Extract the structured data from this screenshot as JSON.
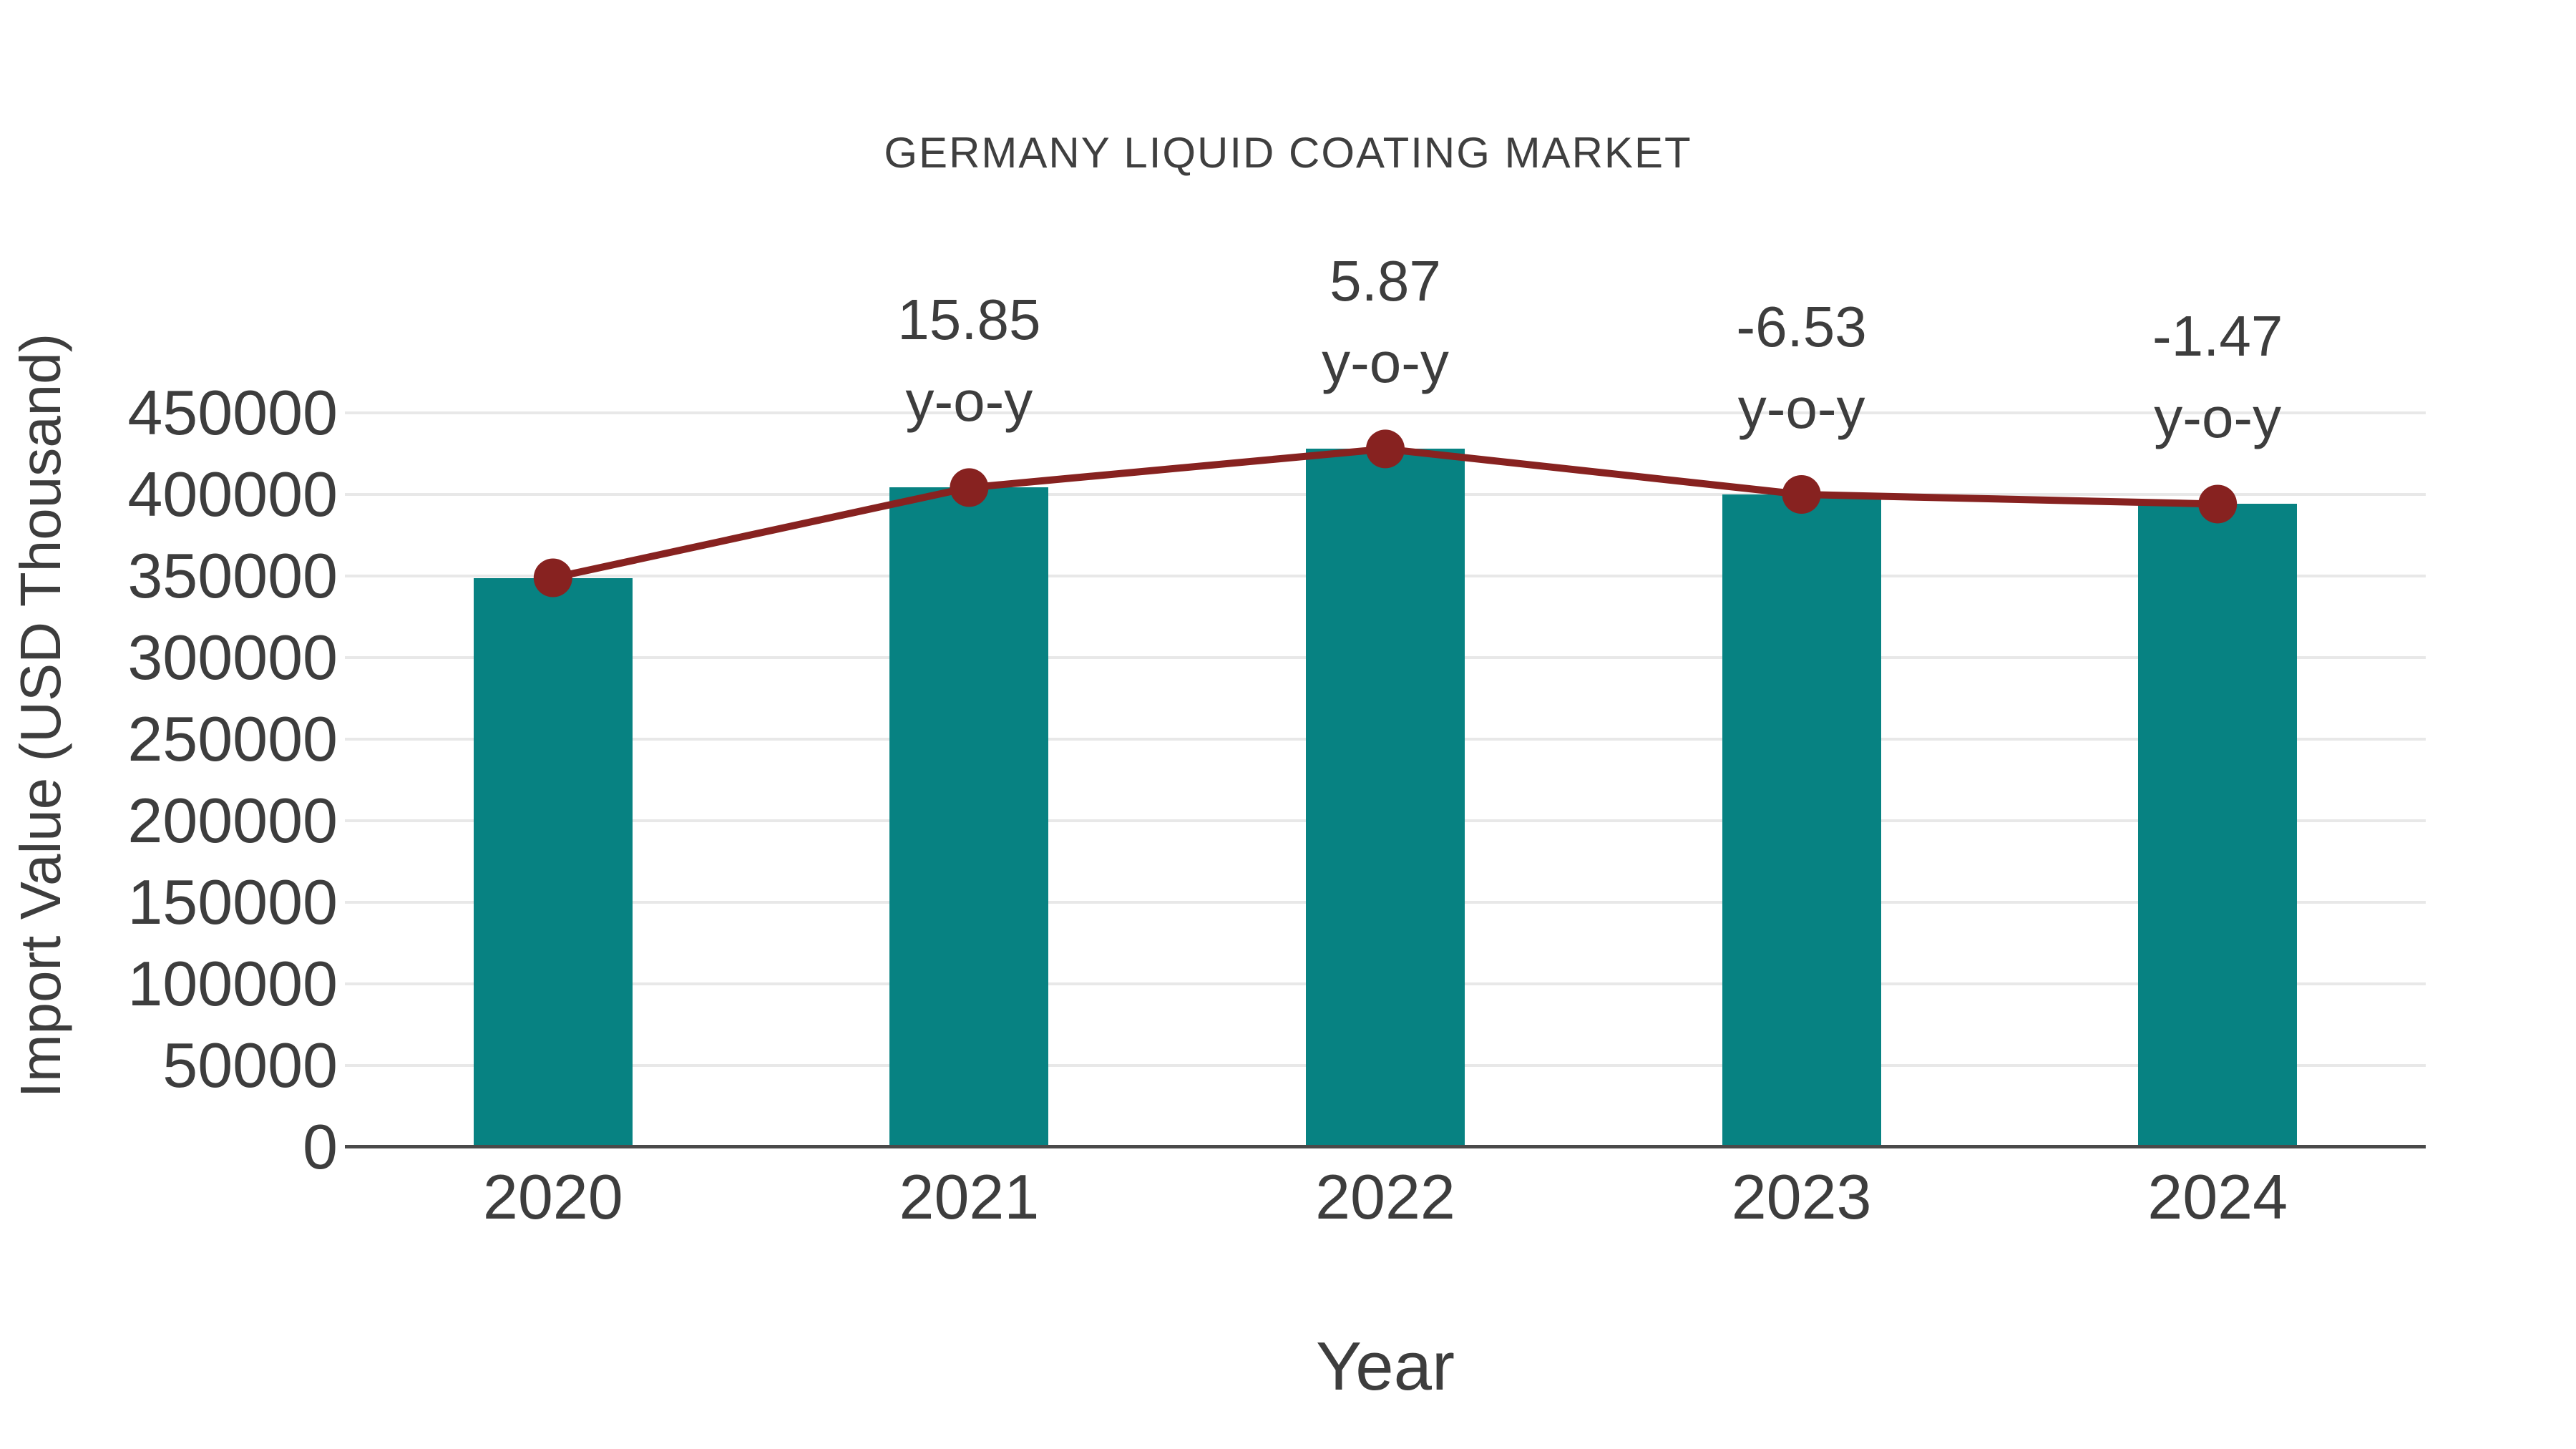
{
  "chart_data": {
    "type": "bar",
    "title": "GERMANY LIQUID COATING MARKET",
    "xlabel": "Year",
    "ylabel": "Import Value (USD Thousand)",
    "categories": [
      "2020",
      "2021",
      "2022",
      "2023",
      "2024"
    ],
    "series": [
      {
        "name": "Import Value",
        "type": "bar",
        "color": "#078282",
        "values": [
          348900,
          404200,
          427900,
          400000,
          394100
        ]
      },
      {
        "name": "Year-over-year trend line",
        "type": "line",
        "color": "#872220",
        "values": [
          348900,
          404200,
          427900,
          400000,
          394100
        ]
      }
    ],
    "annotations": [
      {
        "category": "2021",
        "value_label": "15.85",
        "suffix_label": "y-o-y"
      },
      {
        "category": "2022",
        "value_label": "5.87",
        "suffix_label": "y-o-y"
      },
      {
        "category": "2023",
        "value_label": "-6.53",
        "suffix_label": "y-o-y"
      },
      {
        "category": "2024",
        "value_label": "-1.47",
        "suffix_label": "y-o-y"
      }
    ],
    "ylim": [
      0,
      450000
    ],
    "ytick_step": 50000,
    "yticks": [
      "450000",
      "400000",
      "350000",
      "300000",
      "250000",
      "200000",
      "150000",
      "100000",
      "50000",
      "0"
    ],
    "grid": "horizontal",
    "legend": "none"
  },
  "colors": {
    "bar": "#078282",
    "line": "#872220",
    "marker": "#872220",
    "text": "#3d3d3d",
    "gridline": "#e8e8e8",
    "axis_line": "#4a4a4a",
    "background": "#ffffff"
  }
}
